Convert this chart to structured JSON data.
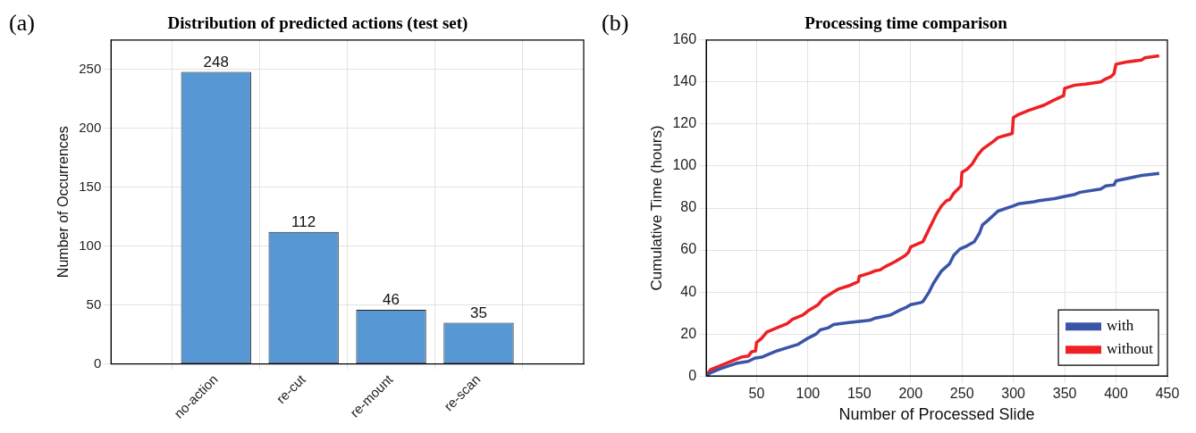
{
  "chart_data": [
    {
      "type": "bar",
      "title": "Distribution of predicted actions (test set)",
      "ylabel": "Number of Occurrences",
      "annotations": [
        "(a)"
      ],
      "categories": [
        "no-action",
        "re-cut",
        "re-mount",
        "re-scan"
      ],
      "values": [
        248,
        112,
        46,
        35
      ],
      "color": "#5797d4",
      "ylim": [
        0,
        275
      ],
      "yticks": [
        0,
        50,
        100,
        150,
        200,
        250
      ],
      "grid": true,
      "data_labels": true
    },
    {
      "type": "line",
      "title": "Processing time comparison",
      "xlabel": "Number of Processed Slide",
      "ylabel": "Cumulative Time (hours)",
      "annotations": [
        "(b)"
      ],
      "xlim": [
        1,
        450
      ],
      "xticks": [
        50,
        100,
        150,
        200,
        250,
        300,
        350,
        400,
        450
      ],
      "ylim": [
        0,
        160
      ],
      "yticks": [
        0,
        20,
        40,
        60,
        80,
        100,
        120,
        140,
        160
      ],
      "grid": true,
      "legend": "bottom right",
      "marker": "none",
      "line_style": "solid",
      "series": [
        {
          "name": "with",
          "color": "#3a55a8",
          "x": [
            1,
            5,
            15,
            30,
            42,
            48,
            55,
            60,
            70,
            80,
            90,
            100,
            108,
            112,
            120,
            125,
            140,
            150,
            160,
            165,
            180,
            190,
            195,
            200,
            210,
            212,
            218,
            222,
            230,
            238,
            242,
            248,
            255,
            262,
            267,
            270,
            275,
            285,
            300,
            305,
            320,
            325,
            340,
            350,
            360,
            365,
            385,
            390,
            398,
            400,
            425,
            442
          ],
          "values": [
            0,
            1.5,
            3.5,
            6,
            7,
            8.5,
            9,
            10,
            12,
            13.5,
            15,
            18,
            20,
            22,
            23,
            24.5,
            25.5,
            26,
            26.5,
            27.5,
            29,
            31.5,
            32.5,
            34,
            35,
            35.5,
            40,
            44,
            50,
            53.5,
            57.5,
            60.5,
            62,
            64,
            68,
            72,
            74,
            78.5,
            81,
            82,
            83,
            83.5,
            84.5,
            85.5,
            86.5,
            87.5,
            89,
            90.5,
            91,
            93,
            95.5,
            96.5
          ]
        },
        {
          "name": "without",
          "color": "#ee2024",
          "x": [
            1,
            5,
            20,
            35,
            42,
            45,
            49,
            50,
            55,
            60,
            70,
            80,
            85,
            95,
            100,
            110,
            115,
            125,
            130,
            140,
            149,
            150,
            160,
            165,
            170,
            175,
            185,
            195,
            198,
            200,
            205,
            212,
            220,
            225,
            230,
            235,
            238,
            242,
            248,
            249,
            250,
            255,
            260,
            265,
            270,
            280,
            285,
            299,
            300,
            305,
            315,
            330,
            340,
            349,
            350,
            360,
            370,
            385,
            390,
            395,
            398,
            400,
            410,
            425,
            428,
            442
          ],
          "values": [
            0,
            3,
            6,
            9,
            9.5,
            11.5,
            12,
            16,
            18,
            21,
            23,
            25,
            27,
            29,
            31,
            34,
            37,
            40,
            41.5,
            43,
            45,
            47.5,
            49,
            50,
            50.5,
            52,
            54.5,
            57.5,
            59,
            61.5,
            62.5,
            64,
            72,
            77,
            81,
            83.5,
            84,
            87,
            90,
            90.5,
            97,
            98.5,
            101,
            105,
            108,
            111.5,
            113.5,
            115.5,
            123,
            124.5,
            126.5,
            129,
            131.5,
            133.5,
            137,
            138.5,
            139,
            140,
            141.5,
            142.5,
            144,
            148.5,
            149.5,
            150.5,
            151.5,
            152.5
          ]
        }
      ]
    }
  ]
}
